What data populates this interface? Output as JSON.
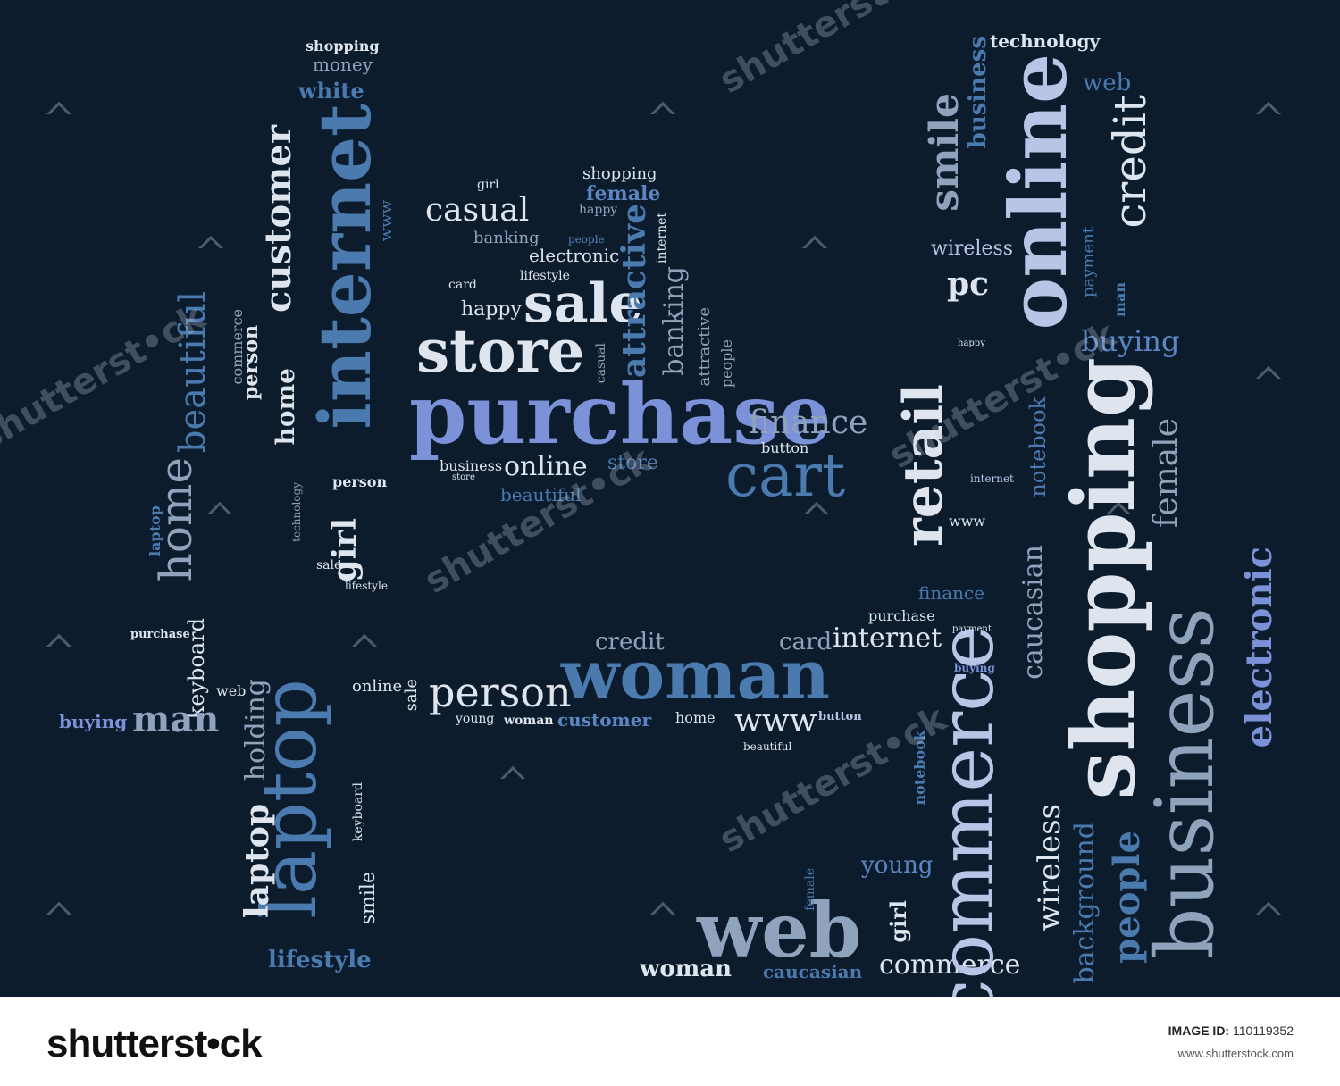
{
  "words": {
    "purchase": "purchase",
    "store": "store",
    "sale": "sale",
    "casual": "casual",
    "attractive": "attractive",
    "banking": "banking",
    "finance": "finance",
    "cart": "cart",
    "online": "online",
    "internet": "internet",
    "customer": "customer",
    "home": "home",
    "beautiful": "beautiful",
    "laptop": "laptop",
    "woman": "woman",
    "person": "person",
    "man": "man",
    "web": "web",
    "commerce": "commerce",
    "shopping": "shopping",
    "business": "business",
    "electronic": "electronic",
    "credit": "credit",
    "smile": "smile",
    "retail": "retail",
    "technology": "technology",
    "wireless": "wireless",
    "pc": "pc",
    "buying": "buying",
    "female": "female",
    "notebook": "notebook",
    "caucasian": "caucasian",
    "people": "people",
    "background": "background",
    "young": "young",
    "holding": "holding",
    "lifestyle": "lifestyle",
    "keyboard": "keyboard",
    "www": "www",
    "card": "card",
    "happy": "happy",
    "money": "money",
    "white": "white",
    "girl": "girl",
    "electronic_small": "electronic",
    "button": "button",
    "payment": "payment",
    "store_small": "store"
  },
  "watermark": {
    "text": "shutterst•ck"
  },
  "footer": {
    "logo": "shutterst•ck",
    "image_id_label": "IMAGE ID:",
    "image_id": "110119352",
    "site": "www.shutterstock.com"
  }
}
